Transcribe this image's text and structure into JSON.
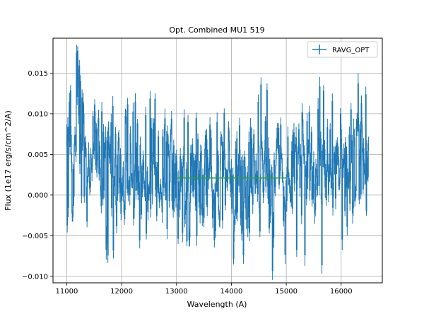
{
  "chart_data": {
    "type": "line",
    "title": "Opt. Combined MU1 519",
    "xlabel": "Wavelength (A)",
    "ylabel": "Flux (1e17 erg/s/cm^2/A)",
    "xlim": [
      10750,
      16750
    ],
    "ylim": [
      -0.0108,
      0.0193
    ],
    "xticks": [
      11000,
      12000,
      13000,
      14000,
      15000,
      16000
    ],
    "xtick_labels": [
      "11000",
      "12000",
      "13000",
      "14000",
      "15000",
      "16000"
    ],
    "yticks": [
      -0.01,
      -0.005,
      0.0,
      0.005,
      0.01,
      0.015
    ],
    "ytick_labels": [
      "−0.010",
      "−0.005",
      "0.000",
      "0.005",
      "0.010",
      "0.015"
    ],
    "grid": true,
    "legend_position": "top-right",
    "colors": {
      "series": "#1f77b4",
      "fit": "#2ca02c"
    },
    "series": [
      {
        "name": "RAVG_OPT",
        "style": "step-with-errorbars",
        "x_start": 11000,
        "x_end": 16500,
        "step": 10,
        "anchors_x": [
          11000,
          11050,
          11100,
          11150,
          11200,
          11250,
          11300,
          11400,
          11500,
          11600,
          11700,
          11750,
          11800,
          11900,
          12000,
          12100,
          12200,
          12300,
          12400,
          12500,
          12600,
          12700,
          12800,
          12900,
          13000,
          13100,
          13200,
          13300,
          13400,
          13500,
          13600,
          13700,
          13800,
          13900,
          14000,
          14100,
          14200,
          14300,
          14400,
          14500,
          14600,
          14700,
          14750,
          14800,
          14900,
          15000,
          15100,
          15200,
          15300,
          15400,
          15500,
          15600,
          15700,
          15800,
          15900,
          16000,
          16100,
          16200,
          16300,
          16400,
          16500
        ],
        "anchors_y": [
          0.003,
          0.006,
          0.004,
          0.007,
          0.009,
          0.006,
          0.005,
          0.004,
          0.005,
          0.006,
          0.004,
          0.002,
          0.004,
          0.003,
          0.003,
          0.004,
          0.003,
          0.004,
          0.003,
          0.003,
          0.004,
          0.002,
          0.003,
          0.002,
          0.002,
          0.002,
          0.002,
          0.003,
          0.003,
          0.002,
          0.002,
          0.002,
          0.003,
          0.002,
          0.002,
          0.003,
          0.002,
          0.002,
          0.002,
          0.002,
          0.003,
          0.001,
          0.0015,
          0.002,
          0.003,
          0.002,
          0.003,
          0.003,
          0.003,
          0.004,
          0.003,
          0.003,
          0.003,
          0.004,
          0.004,
          0.004,
          0.004,
          0.003,
          0.004,
          0.004,
          0.003
        ],
        "amplitude": 0.004,
        "approx_min": -0.0093,
        "approx_max": 0.0177
      },
      {
        "style": "line",
        "x": [
          13000,
          15000
        ],
        "y": [
          0.0021,
          0.0021
        ]
      }
    ]
  }
}
